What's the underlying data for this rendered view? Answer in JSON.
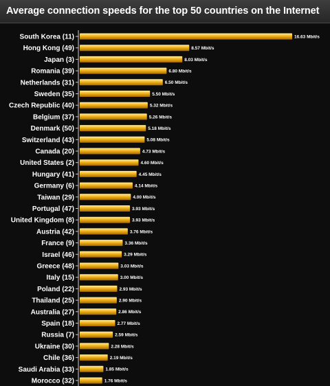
{
  "chart_data": {
    "type": "bar",
    "orientation": "horizontal",
    "title": "Average connection speeds for the top 50 countries on the Internet",
    "categories": [
      "South Korea (11)",
      "Hong Kong (49)",
      "Japan (3)",
      "Romania (39)",
      "Netherlands (31)",
      "Sweden (35)",
      "Czech Republic (40)",
      "Belgium (37)",
      "Denmark (50)",
      "Switzerland (43)",
      "Canada (20)",
      "United States (2)",
      "Hungary (41)",
      "Germany (6)",
      "Taiwan (29)",
      "Portugal (47)",
      "United Kingdom (8)",
      "Austria (42)",
      "France (9)",
      "Israel (46)",
      "Greece (48)",
      "Italy (15)",
      "Poland (22)",
      "Thailand (25)",
      "Australia (27)",
      "Spain (18)",
      "Russia (7)",
      "Ukraine (30)",
      "Chile (36)",
      "Saudi Arabia (33)",
      "Morocco (32)"
    ],
    "values": [
      16.63,
      8.57,
      8.03,
      6.8,
      6.5,
      5.5,
      5.32,
      5.26,
      5.18,
      5.08,
      4.73,
      4.6,
      4.45,
      4.14,
      4.0,
      3.93,
      3.93,
      3.76,
      3.36,
      3.29,
      3.03,
      3.0,
      2.93,
      2.9,
      2.86,
      2.77,
      2.59,
      2.28,
      2.19,
      1.85,
      1.76
    ],
    "value_labels": [
      "16.63 Mbit/s",
      "8.57 Mbit/s",
      "8.03 Mbit/s",
      "6.80 Mbit/s",
      "6.50 Mbit/s",
      "5.50 Mbit/s",
      "5.32 Mbit/s",
      "5.26 Mbit/s",
      "5.18 Mbit/s",
      "5.08 Mbit/s",
      "4.73 Mbit/s",
      "4.60 Mbit/s",
      "4.45 Mbit/s",
      "4.14 Mbit/s",
      "4.00 Mbit/s",
      "3.93 Mbit/s",
      "3.93 Mbit/s",
      "3.76 Mbit/s",
      "3.36 Mbit/s",
      "3.29 Mbit/s",
      "3.03 Mbit/s",
      "3.00 Mbit/s",
      "2.93 Mbit/s",
      "2.90 Mbit/s",
      "2.86 Mbit/s",
      "2.77 Mbit/s",
      "2.59 Mbit/s",
      "2.28 Mbit/s",
      "2.19 Mbit/s",
      "1.85 Mbit/s",
      "1.76 Mbit/s"
    ],
    "unit": "Mbit/s",
    "xlim": [
      0,
      16.63
    ],
    "grid": false,
    "legend": "none",
    "colors": {
      "background": "#0d0d0d",
      "bar_top": "#fff0a0",
      "bar_mid": "#f2b21a",
      "bar_bottom": "#a86c00",
      "text": "#ffffff"
    }
  }
}
